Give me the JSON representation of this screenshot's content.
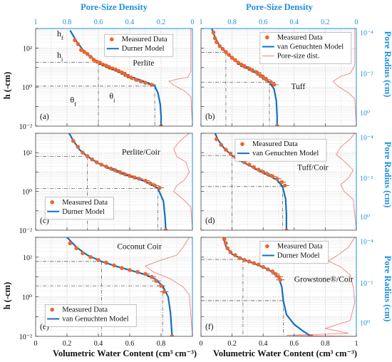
{
  "figure": {
    "top_axis_label": "Pore-Size Density",
    "top_ticks": [
      "1",
      "0.8",
      "0.6",
      "0.4",
      "0.2",
      "0"
    ],
    "bottom_axis_label": "Volumetric Water Content (cm³ cm⁻³)",
    "left_axis_label": "h (-cm)",
    "right_axis_label": "Pore Radius (cm)",
    "x_ticks": [
      "0",
      "0.2",
      "0.4",
      "0.6",
      "0.8"
    ],
    "x_ticks_right": [
      "0",
      "0.2",
      "0.4",
      "0.6",
      "0.8",
      "1"
    ],
    "h_ticks": [
      "10⁻²",
      "10⁰",
      "10²"
    ],
    "r_ticks": [
      "10⁰",
      "10⁻²",
      "10⁻⁴"
    ]
  },
  "colors": {
    "measured": "#f0642a",
    "model": "#1270bf",
    "psd": "#f08080",
    "blue_axis": "#1f8fe0",
    "guides": "#666666"
  },
  "chart_data": [
    {
      "id": "a",
      "panel_label": "(a)",
      "title": "Perlite",
      "legend": [
        "Measured Data",
        "Durner Model"
      ],
      "annotations": {
        "hf": "h",
        "hf_sub": "f",
        "hi": "h",
        "hi_sub": "i",
        "thf": "θ",
        "thf_sub": "f",
        "thi": "θ",
        "thi_sub": "i"
      },
      "type": "scatter",
      "xlim": [
        0,
        1
      ],
      "ylim_log10": [
        -2,
        3
      ],
      "measured": [
        [
          0.25,
          2.4
        ],
        [
          0.27,
          2.2
        ],
        [
          0.29,
          1.9
        ],
        [
          0.31,
          1.8
        ],
        [
          0.33,
          1.7
        ],
        [
          0.35,
          1.55
        ],
        [
          0.37,
          1.4
        ],
        [
          0.39,
          1.3
        ],
        [
          0.41,
          1.25
        ],
        [
          0.43,
          1.15
        ],
        [
          0.45,
          1.1
        ],
        [
          0.47,
          1.0
        ],
        [
          0.49,
          0.95
        ],
        [
          0.51,
          0.9
        ],
        [
          0.53,
          0.82
        ],
        [
          0.55,
          0.75
        ],
        [
          0.57,
          0.65
        ],
        [
          0.59,
          0.55
        ],
        [
          0.61,
          0.48
        ],
        [
          0.64,
          0.38
        ],
        [
          0.67,
          0.3
        ],
        [
          0.7,
          0.22
        ],
        [
          0.74,
          0.12
        ],
        [
          0.8,
          -2
        ]
      ],
      "model": [
        [
          0.22,
          2.9
        ],
        [
          0.26,
          2.35
        ],
        [
          0.3,
          1.92
        ],
        [
          0.35,
          1.55
        ],
        [
          0.4,
          1.27
        ],
        [
          0.45,
          1.05
        ],
        [
          0.5,
          0.88
        ],
        [
          0.55,
          0.72
        ],
        [
          0.6,
          0.55
        ],
        [
          0.66,
          0.38
        ],
        [
          0.72,
          0.2
        ],
        [
          0.76,
          0.05
        ],
        [
          0.78,
          -0.3
        ],
        [
          0.795,
          -0.9
        ],
        [
          0.8,
          -1.5
        ],
        [
          0.8,
          -2
        ]
      ],
      "psd": [
        [
          0.01,
          3
        ],
        [
          0.01,
          0.8
        ],
        [
          0.03,
          0.5
        ],
        [
          0.1,
          0.4
        ],
        [
          0.15,
          0.3
        ],
        [
          0.12,
          0.1
        ],
        [
          0.05,
          -0.2
        ],
        [
          0.01,
          -0.5
        ],
        [
          0,
          -2
        ]
      ]
    },
    {
      "id": "b",
      "panel_label": "(b)",
      "title": "Tuff",
      "legend": [
        "Measured Data",
        "van Genuchten Model",
        "Pore-size dist."
      ],
      "type": "scatter",
      "xlim": [
        0,
        1
      ],
      "ylim_log10": [
        -2,
        3
      ],
      "measured": [
        [
          0.08,
          2.8
        ],
        [
          0.09,
          2.5
        ],
        [
          0.1,
          2.3
        ],
        [
          0.12,
          2.1
        ],
        [
          0.14,
          1.95
        ],
        [
          0.16,
          1.8
        ],
        [
          0.18,
          1.65
        ],
        [
          0.2,
          1.5
        ],
        [
          0.22,
          1.38
        ],
        [
          0.24,
          1.25
        ],
        [
          0.26,
          1.15
        ],
        [
          0.28,
          1.05
        ],
        [
          0.31,
          0.95
        ],
        [
          0.33,
          0.85
        ],
        [
          0.36,
          0.75
        ],
        [
          0.38,
          0.62
        ],
        [
          0.4,
          0.5
        ],
        [
          0.42,
          0.38
        ],
        [
          0.45,
          0.25
        ],
        [
          0.47,
          0.12
        ],
        [
          0.49,
          -2
        ]
      ],
      "model": [
        [
          0.06,
          3.2
        ],
        [
          0.09,
          2.55
        ],
        [
          0.12,
          2.12
        ],
        [
          0.16,
          1.78
        ],
        [
          0.2,
          1.5
        ],
        [
          0.25,
          1.2
        ],
        [
          0.3,
          0.97
        ],
        [
          0.35,
          0.75
        ],
        [
          0.4,
          0.52
        ],
        [
          0.44,
          0.25
        ],
        [
          0.47,
          -0.1
        ],
        [
          0.485,
          -0.7
        ],
        [
          0.49,
          -1.5
        ],
        [
          0.49,
          -2
        ]
      ],
      "psd": [
        [
          0.01,
          3
        ],
        [
          0.01,
          1.1
        ],
        [
          0.04,
          0.7
        ],
        [
          0.1,
          0.55
        ],
        [
          0.15,
          0.3
        ],
        [
          0.12,
          0.05
        ],
        [
          0.05,
          -0.3
        ],
        [
          0.01,
          -0.6
        ],
        [
          0,
          -2
        ]
      ]
    },
    {
      "id": "c",
      "panel_label": "(c)",
      "title": "Perlite/Coir",
      "legend": [
        "Measured Data",
        "Durner Model"
      ],
      "type": "scatter",
      "xlim": [
        0,
        1
      ],
      "ylim_log10": [
        -2,
        3
      ],
      "measured": [
        [
          0.24,
          2.6
        ],
        [
          0.27,
          2.3
        ],
        [
          0.3,
          2.0
        ],
        [
          0.33,
          1.82
        ],
        [
          0.36,
          1.65
        ],
        [
          0.39,
          1.5
        ],
        [
          0.42,
          1.38
        ],
        [
          0.45,
          1.28
        ],
        [
          0.48,
          1.18
        ],
        [
          0.51,
          1.08
        ],
        [
          0.54,
          0.98
        ],
        [
          0.57,
          0.88
        ],
        [
          0.6,
          0.8
        ],
        [
          0.63,
          0.72
        ],
        [
          0.66,
          0.65
        ],
        [
          0.7,
          0.55
        ],
        [
          0.73,
          0.42
        ],
        [
          0.76,
          0.3
        ],
        [
          0.79,
          0.18
        ],
        [
          0.83,
          -2
        ]
      ],
      "model": [
        [
          0.2,
          3.2
        ],
        [
          0.24,
          2.62
        ],
        [
          0.28,
          2.15
        ],
        [
          0.33,
          1.8
        ],
        [
          0.4,
          1.45
        ],
        [
          0.48,
          1.17
        ],
        [
          0.56,
          0.92
        ],
        [
          0.64,
          0.7
        ],
        [
          0.72,
          0.45
        ],
        [
          0.78,
          0.15
        ],
        [
          0.815,
          -0.5
        ],
        [
          0.825,
          -1.3
        ],
        [
          0.83,
          -2
        ]
      ],
      "psd": [
        [
          0.02,
          3
        ],
        [
          0.08,
          2.6
        ],
        [
          0.12,
          2.2
        ],
        [
          0.1,
          1.8
        ],
        [
          0.04,
          1.5
        ],
        [
          0.02,
          1.0
        ],
        [
          0.05,
          0.6
        ],
        [
          0.1,
          0.3
        ],
        [
          0.12,
          0.0
        ],
        [
          0.06,
          -0.4
        ],
        [
          0.01,
          -0.8
        ],
        [
          0,
          -2
        ]
      ]
    },
    {
      "id": "d",
      "panel_label": "(d)",
      "title": "Tuff/Coir",
      "legend": [
        "Measured Data",
        "van Genuchten Model"
      ],
      "type": "scatter",
      "xlim": [
        0,
        1
      ],
      "ylim_log10": [
        -2,
        3
      ],
      "measured": [
        [
          0.1,
          2.7
        ],
        [
          0.13,
          2.4
        ],
        [
          0.16,
          2.15
        ],
        [
          0.19,
          1.95
        ],
        [
          0.22,
          1.78
        ],
        [
          0.25,
          1.62
        ],
        [
          0.28,
          1.5
        ],
        [
          0.31,
          1.38
        ],
        [
          0.34,
          1.25
        ],
        [
          0.37,
          1.12
        ],
        [
          0.4,
          1.0
        ],
        [
          0.43,
          0.88
        ],
        [
          0.46,
          0.78
        ],
        [
          0.49,
          0.65
        ],
        [
          0.52,
          0.48
        ],
        [
          0.54,
          0.3
        ],
        [
          0.55,
          -2
        ]
      ],
      "model": [
        [
          0.08,
          3.2
        ],
        [
          0.11,
          2.65
        ],
        [
          0.15,
          2.22
        ],
        [
          0.2,
          1.85
        ],
        [
          0.26,
          1.55
        ],
        [
          0.32,
          1.3
        ],
        [
          0.38,
          1.05
        ],
        [
          0.44,
          0.82
        ],
        [
          0.49,
          0.58
        ],
        [
          0.525,
          0.25
        ],
        [
          0.545,
          -0.4
        ],
        [
          0.55,
          -1.2
        ],
        [
          0.55,
          -2
        ]
      ],
      "psd": [
        [
          0.01,
          3
        ],
        [
          0.04,
          2.7
        ],
        [
          0.1,
          2.3
        ],
        [
          0.13,
          1.9
        ],
        [
          0.07,
          1.5
        ],
        [
          0.02,
          1.1
        ],
        [
          0.05,
          0.7
        ],
        [
          0.1,
          0.35
        ],
        [
          0.08,
          0.0
        ],
        [
          0.02,
          -0.4
        ],
        [
          0,
          -2
        ]
      ]
    },
    {
      "id": "e",
      "panel_label": "(e)",
      "title": "Coconut Coir",
      "legend": [
        "Measured Data",
        "van Genuchten Model"
      ],
      "type": "scatter",
      "xlim": [
        0,
        1
      ],
      "ylim_log10": [
        -2,
        3
      ],
      "measured": [
        [
          0.22,
          2.7
        ],
        [
          0.26,
          2.45
        ],
        [
          0.3,
          2.2
        ],
        [
          0.35,
          2.0
        ],
        [
          0.4,
          1.85
        ],
        [
          0.45,
          1.72
        ],
        [
          0.5,
          1.58
        ],
        [
          0.55,
          1.45
        ],
        [
          0.6,
          1.35
        ],
        [
          0.65,
          1.25
        ],
        [
          0.7,
          1.15
        ],
        [
          0.74,
          1.0
        ],
        [
          0.77,
          0.8
        ],
        [
          0.8,
          0.55
        ],
        [
          0.82,
          0.25
        ],
        [
          0.87,
          -2
        ]
      ],
      "model": [
        [
          0.2,
          3.0
        ],
        [
          0.26,
          2.5
        ],
        [
          0.33,
          2.1
        ],
        [
          0.42,
          1.78
        ],
        [
          0.52,
          1.52
        ],
        [
          0.62,
          1.3
        ],
        [
          0.7,
          1.12
        ],
        [
          0.76,
          0.9
        ],
        [
          0.81,
          0.55
        ],
        [
          0.845,
          0.0
        ],
        [
          0.86,
          -0.8
        ],
        [
          0.87,
          -2
        ]
      ],
      "psd": [
        [
          0.02,
          3
        ],
        [
          0.06,
          2.5
        ],
        [
          0.1,
          2.1
        ],
        [
          0.22,
          1.8
        ],
        [
          0.3,
          1.55
        ],
        [
          0.25,
          1.25
        ],
        [
          0.14,
          0.9
        ],
        [
          0.06,
          0.5
        ],
        [
          0.02,
          0.1
        ],
        [
          0,
          -2
        ]
      ]
    },
    {
      "id": "f",
      "panel_label": "(f)",
      "title": "Growstone®/Coir",
      "legend": [
        "Measured Data",
        "Durner Model"
      ],
      "type": "scatter",
      "xlim": [
        0,
        1
      ],
      "ylim_log10": [
        -2,
        3
      ],
      "measured": [
        [
          0.15,
          2.9
        ],
        [
          0.16,
          2.7
        ],
        [
          0.17,
          2.45
        ],
        [
          0.19,
          2.25
        ],
        [
          0.22,
          2.1
        ],
        [
          0.25,
          1.95
        ],
        [
          0.28,
          1.85
        ],
        [
          0.31,
          1.78
        ],
        [
          0.34,
          1.7
        ],
        [
          0.37,
          1.62
        ],
        [
          0.4,
          1.5
        ],
        [
          0.43,
          1.38
        ],
        [
          0.46,
          1.28
        ],
        [
          0.48,
          1.15
        ],
        [
          0.5,
          1.0
        ],
        [
          0.51,
          0.85
        ],
        [
          0.71,
          -2
        ]
      ],
      "model": [
        [
          0.14,
          3.1
        ],
        [
          0.16,
          2.55
        ],
        [
          0.2,
          2.15
        ],
        [
          0.27,
          1.88
        ],
        [
          0.35,
          1.65
        ],
        [
          0.42,
          1.42
        ],
        [
          0.47,
          1.2
        ],
        [
          0.5,
          0.95
        ],
        [
          0.52,
          0.5
        ],
        [
          0.53,
          -0.2
        ],
        [
          0.55,
          -0.9
        ],
        [
          0.6,
          -1.4
        ],
        [
          0.66,
          -1.75
        ],
        [
          0.71,
          -2
        ]
      ],
      "psd": [
        [
          0.01,
          3
        ],
        [
          0.05,
          2.5
        ],
        [
          0.12,
          2.1
        ],
        [
          0.18,
          1.8
        ],
        [
          0.1,
          1.5
        ],
        [
          0.04,
          1.1
        ],
        [
          0.02,
          0.5
        ],
        [
          0.01,
          -0.3
        ],
        [
          0.04,
          -1.2
        ],
        [
          0.2,
          -1.6
        ],
        [
          0.05,
          -1.85
        ],
        [
          0.45,
          -1.95
        ],
        [
          0,
          -2
        ]
      ]
    }
  ]
}
